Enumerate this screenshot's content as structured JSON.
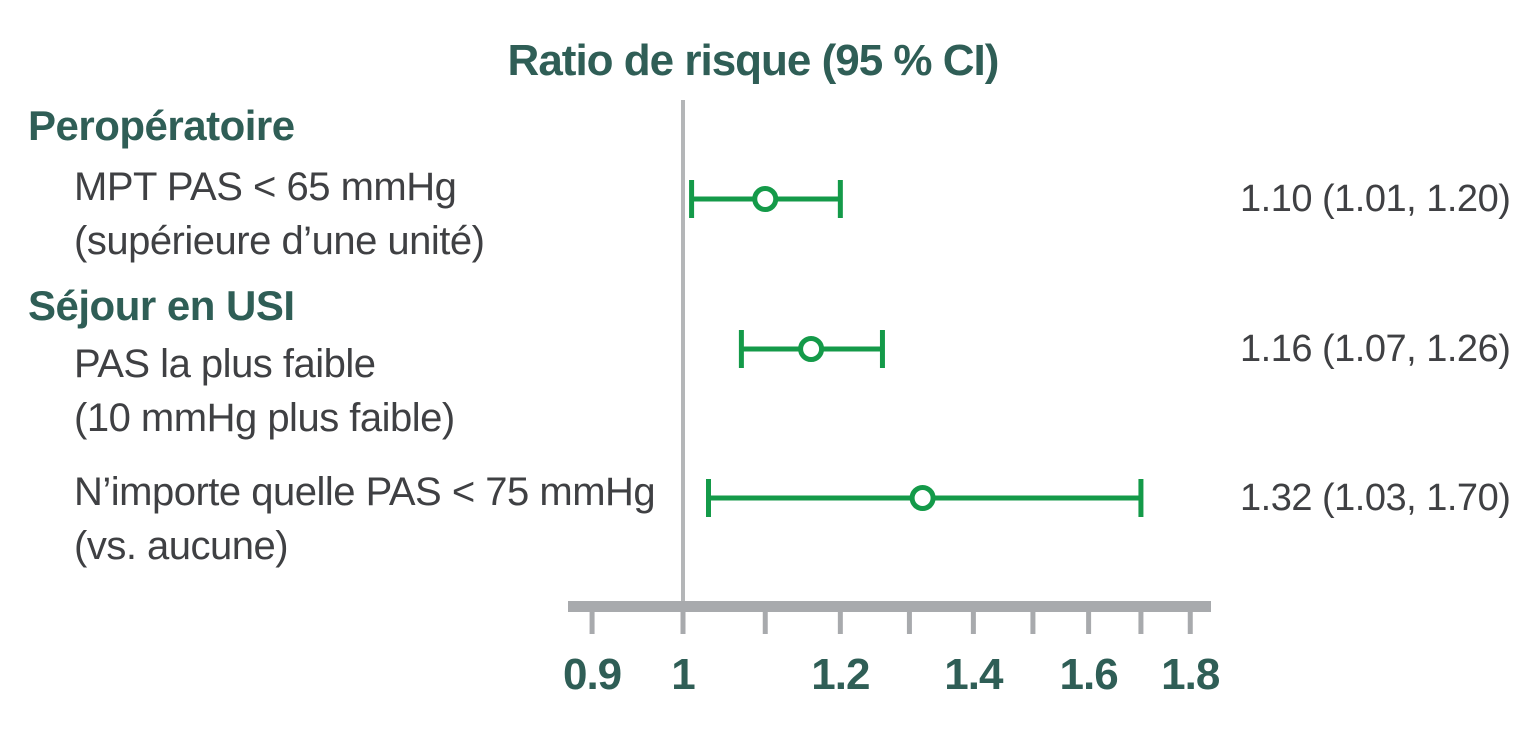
{
  "chart_data": {
    "type": "forest",
    "title": "Ratio de risque (95 % CI)",
    "scale": "log",
    "axis": {
      "min": 0.9,
      "max": 1.8,
      "ticks": [
        0.9,
        1.0,
        1.1,
        1.2,
        1.3,
        1.4,
        1.5,
        1.6,
        1.7,
        1.8
      ],
      "tick_labels": [
        {
          "value": 0.9,
          "text": "0.9"
        },
        {
          "value": 1.0,
          "text": "1"
        },
        {
          "value": 1.2,
          "text": "1.2"
        },
        {
          "value": 1.4,
          "text": "1.4"
        },
        {
          "value": 1.6,
          "text": "1.6"
        },
        {
          "value": 1.8,
          "text": "1.8"
        }
      ],
      "reference_value": 1.0
    },
    "groups": [
      {
        "header": "Peropératoire",
        "rows": [
          {
            "label_lines": [
              "MPT PAS < 65 mmHg",
              "(supérieure d’une unité)"
            ],
            "estimate": 1.1,
            "ci_low": 1.01,
            "ci_high": 1.2,
            "value_text": "1.10 (1.01, 1.20)"
          }
        ]
      },
      {
        "header": "Séjour en USI",
        "rows": [
          {
            "label_lines": [
              "PAS la plus faible",
              "(10 mmHg plus faible)"
            ],
            "estimate": 1.16,
            "ci_low": 1.07,
            "ci_high": 1.26,
            "value_text": "1.16 (1.07, 1.26)"
          },
          {
            "label_lines": [
              "N’importe quelle PAS < 75 mmHg",
              "(vs. aucune)"
            ],
            "estimate": 1.32,
            "ci_low": 1.03,
            "ci_high": 1.7,
            "value_text": "1.32 (1.03, 1.70)"
          }
        ]
      }
    ],
    "legend_position": "none",
    "grid": false,
    "colors": {
      "marker_green": "#149a49",
      "teal": "#2f5e56",
      "text_gray": "#3f4043",
      "axis_gray": "#a8aaad",
      "reference_line_gray": "#b4b6b8",
      "background": "#ffffff"
    }
  }
}
